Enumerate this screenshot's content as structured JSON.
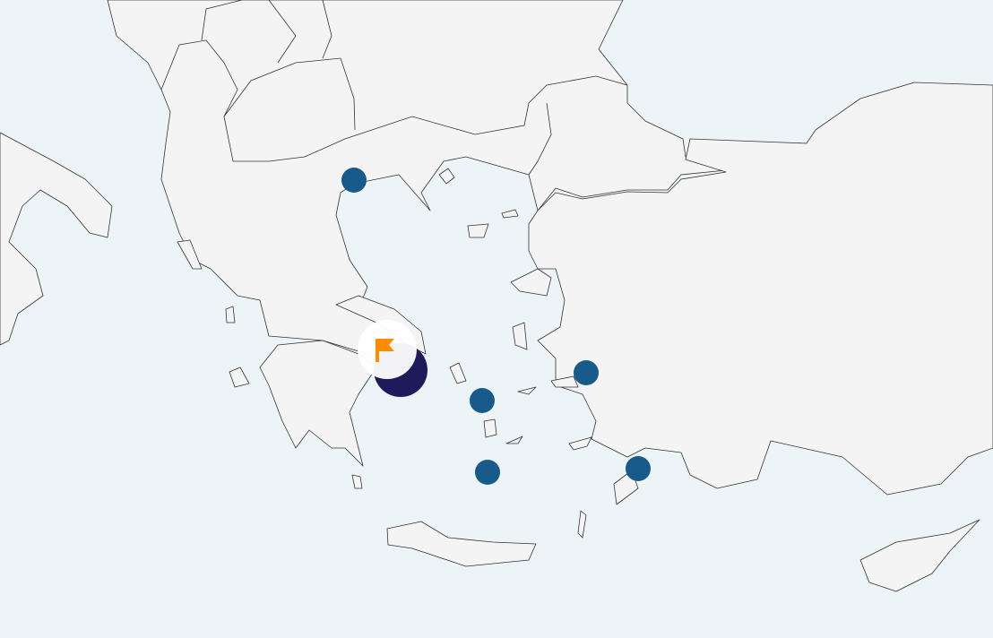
{
  "map": {
    "sea_color": "#edf4f8",
    "land_color": "#f4f4f4",
    "marker_color": "#185a8a",
    "highlight_marker_color": "#1f1b5a",
    "flag_color": "#ff8c00",
    "markers": [
      {
        "name": "marker-north"
      },
      {
        "name": "marker-cyclades-north"
      },
      {
        "name": "marker-east-aegean"
      },
      {
        "name": "marker-cyclades-south"
      },
      {
        "name": "marker-dodecanese"
      }
    ],
    "selected_marker": {
      "icon": "flag-icon"
    }
  }
}
